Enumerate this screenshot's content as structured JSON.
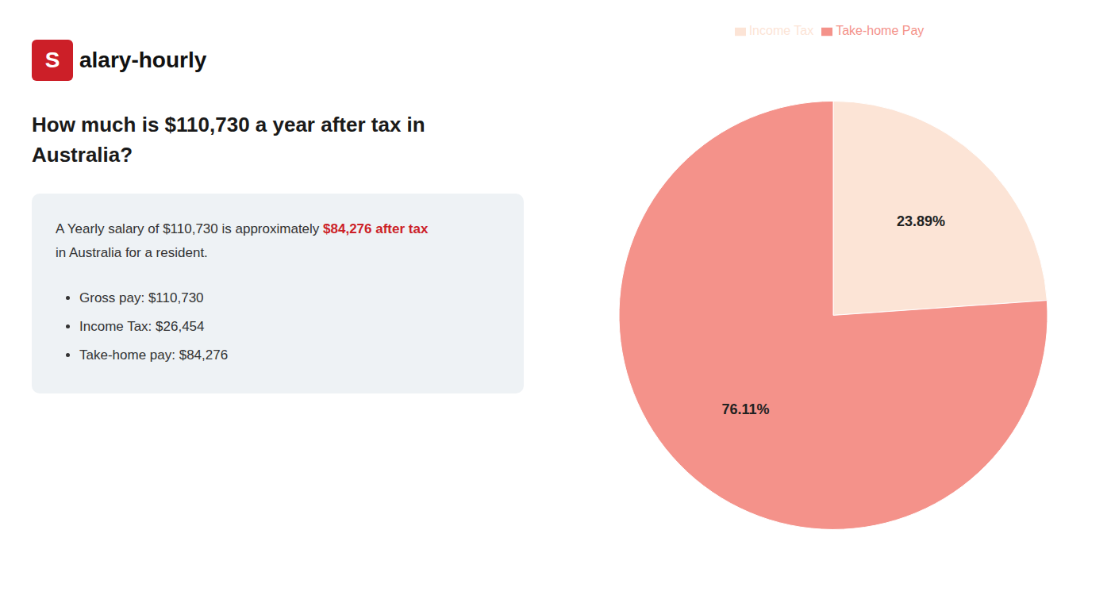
{
  "chart_data": {
    "type": "pie",
    "title": "How much is $110,730 a year after tax in\nAustralia?",
    "annotations": [
      {
        "text": "S",
        "color": "#cc1f28"
      },
      {
        "text": "alary-hourly"
      },
      {
        "text": "A Yearly salary of $110,730 is approximately "
      },
      {
        "text": "$84,276 after tax",
        "color": "#cc1f28"
      },
      {
        "text": "in Australia for a resident."
      },
      {
        "text": "Gross pay: $110,730"
      },
      {
        "text": "Income Tax: $26,454"
      },
      {
        "text": "Take-home pay: $84,276"
      }
    ],
    "categories": [
      "Income Tax",
      "Take-home Pay"
    ],
    "values": [
      23.89,
      76.11
    ],
    "value_labels": [
      "23.89%",
      "76.11%"
    ],
    "colors": [
      "#fce4d6",
      "#f4928a"
    ],
    "data_labels": true,
    "legend": "top"
  }
}
